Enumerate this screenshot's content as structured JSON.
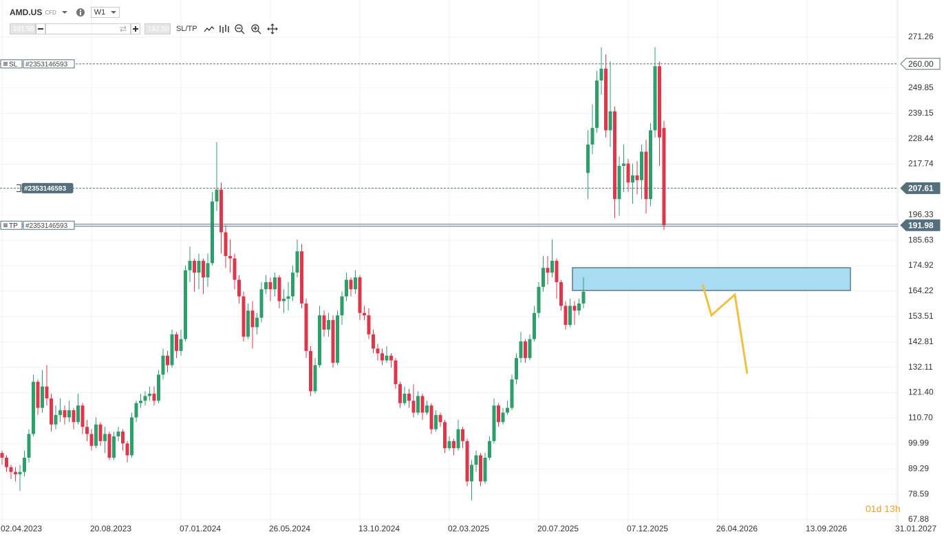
{
  "instrument": {
    "symbol": "AMD.US",
    "kind": "CFD",
    "timeframe": "W1",
    "bid": "191.98",
    "ask": "192.50",
    "sltp": "SL/TP"
  },
  "countdown": {
    "days": "01d",
    "hours": "13h"
  },
  "chart_data": {
    "type": "candlestick",
    "categories": [
      "02.04.2023",
      null,
      null,
      null,
      null,
      null,
      null,
      null,
      null,
      null,
      null,
      null,
      null,
      null,
      null,
      null,
      null,
      null,
      null,
      null,
      "20.08.2023",
      null,
      null,
      null,
      null,
      null,
      null,
      null,
      null,
      null,
      null,
      null,
      null,
      null,
      null,
      null,
      null,
      null,
      null,
      null,
      "07.01.2024",
      null,
      null,
      null,
      null,
      null,
      null,
      null,
      null,
      null,
      null,
      null,
      null,
      null,
      null,
      null,
      null,
      null,
      null,
      null,
      "26.05.2024",
      null,
      null,
      null,
      null,
      null,
      null,
      null,
      null,
      null,
      null,
      null,
      null,
      null,
      null,
      null,
      null,
      null,
      null,
      null,
      "13.10.2024",
      null,
      null,
      null,
      null,
      null,
      null,
      null,
      null,
      null,
      null,
      null,
      null,
      null,
      null,
      null,
      null,
      null,
      null,
      null,
      "02.03.2025",
      null,
      null,
      null,
      null,
      null,
      null,
      null,
      null,
      null,
      null,
      null,
      null,
      null,
      null,
      null,
      null,
      null,
      null,
      null,
      "20.07.2025",
      null,
      null,
      null,
      null,
      null,
      null,
      null,
      null,
      null,
      null,
      null,
      null,
      null,
      null,
      null,
      null,
      null,
      null,
      null,
      "07.12.2025",
      null,
      null,
      null,
      null,
      null,
      null,
      null,
      null,
      null,
      null,
      null,
      null,
      null,
      null,
      null,
      null,
      null,
      null,
      null,
      "26.04.2026",
      null,
      null,
      null,
      null,
      null,
      null,
      null,
      null,
      null,
      null,
      null,
      null,
      null,
      null,
      null,
      null,
      null,
      null,
      null,
      "13.09.2026",
      null,
      null,
      null,
      null,
      null,
      null,
      null,
      null,
      null,
      null,
      null,
      null,
      null,
      null,
      null,
      null,
      null,
      null,
      null,
      "31.01.2027"
    ],
    "open": [
      96,
      94,
      90,
      88,
      87,
      88,
      94,
      104,
      126,
      115,
      124,
      119,
      108,
      112,
      114,
      111,
      114,
      109,
      116,
      107,
      104,
      99,
      108,
      101,
      104,
      94,
      103,
      105,
      100,
      95,
      111,
      117,
      118,
      120,
      121,
      118,
      129,
      137,
      133,
      146,
      139,
      144,
      173,
      177,
      172,
      177,
      170,
      176,
      202,
      207,
      189,
      179,
      178,
      169,
      162,
      145,
      156,
      149,
      153,
      165,
      168,
      165,
      170,
      160,
      161,
      162,
      172,
      181,
      159,
      139,
      122,
      133,
      154,
      148,
      152,
      134,
      154,
      162,
      169,
      165,
      170,
      155,
      154,
      146,
      140,
      138,
      135,
      137,
      135,
      125,
      117,
      121,
      118,
      113,
      120,
      113,
      116,
      106,
      112,
      109,
      98,
      101,
      98,
      106,
      101,
      84,
      91,
      95,
      84,
      94,
      101,
      116,
      109,
      113,
      115,
      127,
      136,
      143,
      136,
      144,
      155,
      166,
      174,
      172,
      177,
      168,
      158,
      150,
      158,
      156,
      159,
      214,
      226,
      233,
      253,
      258,
      232,
      240,
      203,
      217,
      218,
      210,
      213,
      211,
      223,
      203,
      232,
      259,
      233,
      null,
      null,
      null,
      null,
      null,
      null,
      null,
      null,
      null,
      null,
      null,
      null,
      null,
      null,
      null,
      null,
      null,
      null,
      null,
      null,
      null,
      null,
      null,
      null,
      null,
      null,
      null,
      null,
      null,
      null,
      null,
      null,
      null,
      null,
      null,
      null,
      null,
      null,
      null,
      null,
      null,
      null,
      null,
      null,
      null,
      null,
      null,
      null,
      null,
      null,
      null,
      null
    ],
    "high": [
      97,
      95,
      91,
      90,
      91,
      97,
      106,
      129,
      127,
      131,
      133,
      121,
      116,
      119,
      116,
      118,
      115,
      121,
      117,
      110,
      106,
      111,
      109,
      107,
      105,
      105,
      107,
      106,
      101,
      113,
      118,
      121,
      122,
      124,
      124,
      131,
      140,
      139,
      148,
      147,
      148,
      175,
      183,
      178,
      180,
      178,
      180,
      206,
      227,
      210,
      192,
      186,
      180,
      171,
      164,
      159,
      160,
      155,
      168,
      171,
      170,
      172,
      171,
      165,
      168,
      175,
      186,
      184,
      161,
      141,
      136,
      158,
      156,
      155,
      154,
      156,
      164,
      172,
      170,
      173,
      171,
      158,
      157,
      148,
      142,
      140,
      141,
      138,
      136,
      126,
      124,
      123,
      125,
      122,
      121,
      118,
      117,
      114,
      113,
      110,
      103,
      102,
      110,
      107,
      102,
      93,
      97,
      96,
      96,
      103,
      119,
      117,
      115,
      118,
      129,
      138,
      147,
      144,
      146,
      158,
      168,
      179,
      179,
      186,
      178,
      169,
      160,
      161,
      160,
      161,
      170,
      232,
      243,
      257,
      267,
      264,
      261,
      242,
      221,
      226,
      220,
      218,
      219,
      226,
      228,
      235,
      267,
      261,
      236,
      null,
      null,
      null,
      null,
      null,
      null,
      null,
      null,
      null,
      null,
      null,
      null,
      null,
      null,
      null,
      null,
      null,
      null,
      null,
      null,
      null,
      null,
      null,
      null,
      null,
      null,
      null,
      null,
      null,
      null,
      null,
      null,
      null,
      null,
      null,
      null,
      null,
      null,
      null,
      null,
      null,
      null,
      null,
      null,
      null,
      null,
      null,
      null,
      null,
      null,
      null,
      null
    ],
    "low": [
      91,
      88,
      85,
      84,
      80,
      86,
      92,
      103,
      112,
      113,
      116,
      105,
      106,
      109,
      108,
      109,
      106,
      108,
      104,
      101,
      97,
      98,
      99,
      96,
      93,
      93,
      101,
      97,
      92,
      94,
      109,
      115,
      116,
      118,
      116,
      117,
      127,
      130,
      132,
      136,
      137,
      143,
      168,
      164,
      165,
      163,
      166,
      175,
      198,
      180,
      174,
      172,
      165,
      159,
      143,
      144,
      140,
      146,
      151,
      163,
      160,
      162,
      157,
      155,
      156,
      160,
      170,
      157,
      136,
      120,
      121,
      132,
      145,
      145,
      132,
      133,
      150,
      160,
      162,
      163,
      152,
      152,
      144,
      138,
      135,
      133,
      134,
      132,
      123,
      115,
      116,
      115,
      111,
      112,
      110,
      112,
      104,
      105,
      107,
      96,
      97,
      95,
      97,
      98,
      82,
      76,
      88,
      82,
      83,
      93,
      100,
      107,
      108,
      112,
      114,
      125,
      134,
      134,
      135,
      143,
      153,
      164,
      167,
      170,
      161,
      156,
      148,
      149,
      150,
      154,
      157,
      203,
      222,
      231,
      247,
      229,
      225,
      195,
      196,
      206,
      206,
      201,
      205,
      203,
      197,
      200,
      229,
      217,
      190,
      null,
      null,
      null,
      null,
      null,
      null,
      null,
      null,
      null,
      null,
      null,
      null,
      null,
      null,
      null,
      null,
      null,
      null,
      null,
      null,
      null,
      null,
      null,
      null,
      null,
      null,
      null,
      null,
      null,
      null,
      null,
      null,
      null,
      null,
      null,
      null,
      null,
      null,
      null,
      null,
      null,
      null,
      null,
      null,
      null,
      null,
      null,
      null,
      null,
      null,
      null,
      null
    ],
    "close": [
      94,
      90,
      88,
      87,
      88,
      94,
      104,
      126,
      115,
      124,
      119,
      108,
      112,
      114,
      111,
      114,
      109,
      116,
      107,
      104,
      99,
      108,
      101,
      104,
      94,
      103,
      105,
      100,
      95,
      111,
      117,
      118,
      120,
      121,
      118,
      129,
      137,
      133,
      146,
      139,
      144,
      173,
      177,
      172,
      177,
      170,
      176,
      202,
      207,
      189,
      179,
      178,
      169,
      162,
      145,
      156,
      149,
      153,
      165,
      168,
      165,
      170,
      160,
      161,
      162,
      172,
      181,
      159,
      139,
      122,
      133,
      154,
      148,
      152,
      134,
      154,
      162,
      169,
      165,
      170,
      155,
      154,
      146,
      140,
      138,
      135,
      137,
      135,
      125,
      117,
      121,
      118,
      113,
      120,
      113,
      116,
      106,
      112,
      109,
      98,
      101,
      98,
      106,
      101,
      84,
      91,
      95,
      84,
      94,
      101,
      116,
      109,
      113,
      115,
      127,
      136,
      143,
      136,
      144,
      155,
      166,
      174,
      172,
      177,
      168,
      158,
      150,
      158,
      156,
      159,
      164,
      226,
      233,
      253,
      258,
      232,
      240,
      203,
      217,
      218,
      210,
      213,
      211,
      223,
      203,
      232,
      259,
      229,
      191.98,
      null,
      null,
      null,
      null,
      null,
      null,
      null,
      null,
      null,
      null,
      null,
      null,
      null,
      null,
      null,
      null,
      null,
      null,
      null,
      null,
      null,
      null,
      null,
      null,
      null,
      null,
      null,
      null,
      null,
      null,
      null,
      null,
      null,
      null,
      null,
      null,
      null,
      null,
      null,
      null,
      null,
      null,
      null,
      null,
      null,
      null,
      null,
      null,
      null,
      null,
      null,
      null
    ],
    "up_color": "#2e9e6b",
    "down_color": "#e0364c",
    "ylim": [
      66.43,
      278.22
    ],
    "yticks": [
      271.26,
      249.85,
      239.15,
      228.44,
      217.74,
      196.33,
      185.63,
      174.92,
      164.22,
      153.51,
      142.81,
      132.11,
      {
        "value": 121.4,
        "label": "121.40"
      },
      {
        "value": 110.7,
        "label": "110.70"
      },
      99.99,
      89.29,
      78.59,
      67.88
    ],
    "grid": true,
    "price_lines": [
      {
        "tag": "SL",
        "order": "#2353146593",
        "value": 260,
        "label": "260.00",
        "style": "dashed",
        "box": "light"
      },
      {
        "order": "#2353146593",
        "value": 207.61,
        "style": "dashed",
        "box": "dark"
      },
      {
        "tag": "TP",
        "order": "#2353146593",
        "value": 191.98,
        "style": "double",
        "box": "dark"
      }
    ]
  }
}
